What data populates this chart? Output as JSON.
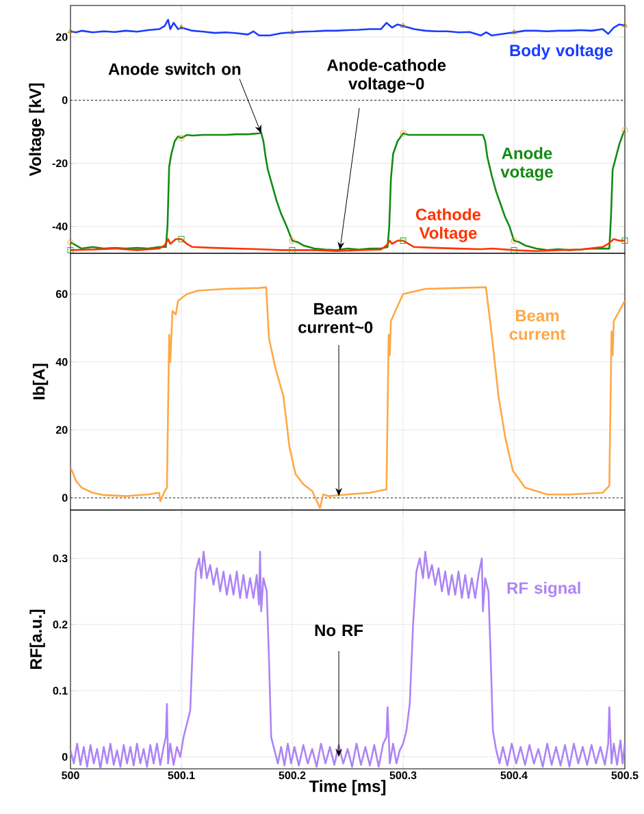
{
  "chart_data": [
    {
      "type": "line",
      "ylabel": "Voltage [kV]",
      "xlim": [
        500,
        500.5
      ],
      "ylim": [
        -48.5,
        30
      ],
      "xticks": [
        500,
        500.1,
        500.2,
        500.3,
        500.4,
        500.5
      ],
      "yticks": [
        -40,
        -20,
        0,
        20
      ],
      "tick_labels": "y",
      "grid": true,
      "ref_lines": [
        {
          "axis": "y",
          "value": 0,
          "line_style": "dashed",
          "color": "#000000"
        }
      ],
      "annotations": [
        {
          "text": "Anode switch on",
          "x": 500.172,
          "y": -10.5
        },
        {
          "text": "Anode-cathode voltage~0",
          "x": 500.243,
          "y": -47.5
        }
      ],
      "series": [
        {
          "name": "Body voltage",
          "color": "#1a3cff",
          "x": [
            500.0,
            500.005,
            500.01,
            500.02,
            500.03,
            500.04,
            500.05,
            500.06,
            500.07,
            500.08,
            500.085,
            500.088,
            500.09,
            500.093,
            500.097,
            500.1,
            500.11,
            500.12,
            500.13,
            500.14,
            500.15,
            500.16,
            500.165,
            500.17,
            500.18,
            500.19,
            500.2,
            500.21,
            500.22,
            500.23,
            500.24,
            500.25,
            500.26,
            500.27,
            500.28,
            500.285,
            500.29,
            500.295,
            500.3,
            500.31,
            500.32,
            500.33,
            500.34,
            500.35,
            500.36,
            500.37,
            500.375,
            500.38,
            500.39,
            500.4,
            500.41,
            500.42,
            500.43,
            500.44,
            500.45,
            500.46,
            500.47,
            500.48,
            500.485,
            500.49,
            500.495,
            500.5
          ],
          "values": [
            21.8,
            21.5,
            22,
            21.5,
            21.8,
            21.6,
            22,
            21.7,
            22.2,
            22.5,
            23.5,
            25.5,
            22.5,
            24.5,
            22.5,
            23,
            22,
            21.7,
            21.3,
            21.5,
            21.2,
            20.8,
            21.8,
            20.5,
            20.5,
            21.2,
            21.5,
            21.7,
            21.8,
            22,
            22,
            22.2,
            22.3,
            22.5,
            22.5,
            24.5,
            23,
            24,
            23.5,
            22.5,
            22,
            21.8,
            21.8,
            21.5,
            21.6,
            20.5,
            21.5,
            20.5,
            21,
            21.5,
            22,
            22,
            21.8,
            22,
            22,
            22.2,
            22,
            22.5,
            21,
            23,
            24,
            23.7
          ]
        },
        {
          "name": "Anode votage",
          "color": "#138a13",
          "x": [
            500.0,
            500.01,
            500.02,
            500.03,
            500.04,
            500.05,
            500.06,
            500.07,
            500.08,
            500.086,
            500.0875,
            500.089,
            500.091,
            500.094,
            500.097,
            500.1,
            500.105,
            500.11,
            500.12,
            500.13,
            500.14,
            500.15,
            500.16,
            500.17,
            500.172,
            500.174,
            500.176,
            500.178,
            500.182,
            500.186,
            500.19,
            500.195,
            500.2,
            500.205,
            500.21,
            500.22,
            500.23,
            500.24,
            500.25,
            500.26,
            500.27,
            500.28,
            500.286,
            500.2875,
            500.289,
            500.291,
            500.295,
            500.3,
            500.305,
            500.31,
            500.32,
            500.33,
            500.34,
            500.35,
            500.36,
            500.372,
            500.374,
            500.376,
            500.38,
            500.384,
            500.388,
            500.392,
            500.396,
            500.4,
            500.405,
            500.41,
            500.42,
            500.43,
            500.44,
            500.45,
            500.46,
            500.47,
            500.48,
            500.486,
            500.4875,
            500.489,
            500.492,
            500.495,
            500.498,
            500.5
          ],
          "values": [
            -45,
            -47,
            -46.5,
            -47,
            -46.8,
            -47,
            -46.8,
            -47,
            -46.5,
            -46.5,
            -40,
            -21,
            -17,
            -13,
            -11.5,
            -12,
            -11,
            -11.2,
            -11,
            -11,
            -11,
            -10.8,
            -10.8,
            -10.5,
            -10.3,
            -13,
            -18,
            -22,
            -27,
            -32,
            -36,
            -40,
            -44.5,
            -45,
            -46,
            -47,
            -47.3,
            -47.5,
            -47,
            -47.3,
            -47,
            -47,
            -46.5,
            -40,
            -25,
            -17,
            -13,
            -10.5,
            -11,
            -11,
            -11,
            -11,
            -11,
            -11,
            -11,
            -11,
            -13,
            -18,
            -24,
            -29,
            -33,
            -37,
            -40,
            -44.5,
            -45,
            -46,
            -47,
            -47.5,
            -47.2,
            -47.5,
            -47.3,
            -47,
            -47,
            -47,
            -37,
            -22,
            -18,
            -14,
            -11,
            -9.5
          ]
        },
        {
          "name": "Cathode Voltage",
          "color": "#ff3300",
          "x": [
            500.0,
            500.02,
            500.04,
            500.06,
            500.08,
            500.085,
            500.088,
            500.09,
            500.095,
            500.1,
            500.105,
            500.11,
            500.13,
            500.15,
            500.17,
            500.19,
            500.2,
            500.22,
            500.24,
            500.26,
            500.28,
            500.285,
            500.288,
            500.29,
            500.295,
            500.3,
            500.305,
            500.31,
            500.33,
            500.35,
            500.37,
            500.38,
            500.4,
            500.42,
            500.44,
            500.46,
            500.48,
            500.485,
            500.49,
            500.495,
            500.5
          ],
          "values": [
            -47.5,
            -47.3,
            -47,
            -47.5,
            -47,
            -46,
            -44,
            -45.5,
            -44,
            -44,
            -45.5,
            -46.5,
            -46.8,
            -47,
            -47.2,
            -47.5,
            -47.5,
            -47.5,
            -47.8,
            -47.5,
            -47.3,
            -46,
            -44.5,
            -45.5,
            -44.5,
            -44.5,
            -45.5,
            -46.5,
            -46.8,
            -47,
            -47.2,
            -47,
            -47.5,
            -47.8,
            -47.5,
            -47.3,
            -46.5,
            -45.5,
            -44,
            -44.5,
            -44.5
          ]
        },
        {
          "type": "scatter",
          "marker": "triangle",
          "color": "#b8860b",
          "x": [
            500.0,
            500.1,
            500.2,
            500.3,
            500.4,
            500.5
          ],
          "values": [
            21.8,
            23,
            21.5,
            23.5,
            21.5,
            23.7
          ]
        },
        {
          "type": "scatter",
          "marker": "circle",
          "color": "#f5a040",
          "x": [
            500.0,
            500.1,
            500.2,
            500.3,
            500.4,
            500.5
          ],
          "values": [
            -45,
            -12,
            -44.5,
            -10.5,
            -44.5,
            -9.5
          ]
        },
        {
          "type": "scatter",
          "marker": "square",
          "color": "#22aa22",
          "x": [
            500.0,
            500.1,
            500.2,
            500.3,
            500.4,
            500.5
          ],
          "values": [
            -47.5,
            -44,
            -47.5,
            -44.5,
            -47.5,
            -44.5
          ]
        }
      ]
    },
    {
      "type": "line",
      "ylabel": "Ib[A]",
      "xlim": [
        500,
        500.5
      ],
      "ylim": [
        -3.6,
        72
      ],
      "xticks": [
        500,
        500.1,
        500.2,
        500.3,
        500.4,
        500.5
      ],
      "yticks": [
        0,
        20,
        40,
        60
      ],
      "tick_labels": "y",
      "grid": true,
      "ref_lines": [
        {
          "axis": "y",
          "value": 0,
          "line_style": "dashed",
          "color": "#000000"
        }
      ],
      "annotations": [
        {
          "text": "Beam current~0",
          "x": 500.242,
          "y": 0.5
        }
      ],
      "series": [
        {
          "name": "Beam current",
          "color": "#ffa845",
          "x": [
            500.0,
            500.005,
            500.01,
            500.02,
            500.03,
            500.05,
            500.07,
            500.08,
            500.081,
            500.085,
            500.087,
            500.089,
            500.09,
            500.092,
            500.095,
            500.097,
            500.105,
            500.115,
            500.14,
            500.17,
            500.1765,
            500.179,
            500.185,
            500.192,
            500.1975,
            500.203,
            500.21,
            500.218,
            500.225,
            500.228,
            500.233,
            500.25,
            500.27,
            500.285,
            500.287,
            500.288,
            500.289,
            500.293,
            500.3,
            500.32,
            500.35,
            500.3747,
            500.38,
            500.386,
            500.392,
            500.399,
            500.41,
            500.43,
            500.45,
            500.48,
            500.486,
            500.488,
            500.489,
            500.49,
            500.495,
            500.5
          ],
          "values": [
            9,
            5,
            3,
            1.5,
            0.8,
            0.5,
            1,
            1.5,
            -1,
            2,
            3,
            48,
            40,
            55,
            54,
            58,
            60,
            61,
            61.5,
            61.8,
            62,
            47,
            38,
            30,
            15,
            7,
            4,
            2,
            -3,
            1,
            0.5,
            1,
            1.5,
            2.5,
            48,
            42,
            52,
            55,
            60,
            61.5,
            61.8,
            62,
            48,
            30,
            18,
            8,
            3,
            1,
            1,
            1.5,
            3.5,
            49,
            42,
            52,
            55,
            58
          ]
        }
      ]
    },
    {
      "type": "line",
      "ylabel": "RF[a.u.]",
      "xlabel": "Time [ms]",
      "xlim": [
        500,
        500.5
      ],
      "ylim": [
        -0.018,
        0.373
      ],
      "xticks": [
        500,
        500.1,
        500.2,
        500.3,
        500.4,
        500.5
      ],
      "yticks": [
        0,
        0.1,
        0.2,
        0.3
      ],
      "grid": true,
      "annotations": [
        {
          "text": "No RF",
          "x": 500.242,
          "y": 0
        }
      ],
      "series": [
        {
          "name": "RF signal",
          "color": "#ad84f5",
          "x": [
            500.0,
            500.003,
            500.006,
            500.009,
            500.012,
            500.015,
            500.018,
            500.021,
            500.024,
            500.027,
            500.03,
            500.033,
            500.036,
            500.039,
            500.042,
            500.045,
            500.048,
            500.051,
            500.054,
            500.057,
            500.06,
            500.063,
            500.066,
            500.069,
            500.072,
            500.075,
            500.078,
            500.081,
            500.084,
            500.086,
            500.087,
            500.088,
            500.09,
            500.093,
            500.096,
            500.099,
            500.102,
            500.105,
            500.108,
            500.111,
            500.113,
            500.116,
            500.118,
            500.12,
            500.123,
            500.126,
            500.129,
            500.132,
            500.135,
            500.138,
            500.141,
            500.144,
            500.147,
            500.15,
            500.153,
            500.156,
            500.159,
            500.162,
            500.165,
            500.168,
            500.17,
            500.171,
            500.172,
            500.174,
            500.177,
            500.179,
            500.181,
            500.184,
            500.187,
            500.19,
            500.193,
            500.196,
            500.199,
            500.202,
            500.206,
            500.21,
            500.214,
            500.218,
            500.222,
            500.226,
            500.23,
            500.234,
            500.238,
            500.242,
            500.246,
            500.25,
            500.254,
            500.258,
            500.262,
            500.266,
            500.27,
            500.274,
            500.278,
            500.282,
            500.285,
            500.286,
            500.288,
            500.291,
            500.294,
            500.297,
            500.3,
            500.303,
            500.306,
            500.309,
            500.312,
            500.315,
            500.318,
            500.32,
            500.323,
            500.326,
            500.329,
            500.332,
            500.335,
            500.338,
            500.341,
            500.344,
            500.347,
            500.35,
            500.353,
            500.356,
            500.359,
            500.362,
            500.365,
            500.368,
            500.371,
            500.372,
            500.374,
            500.377,
            500.379,
            500.381,
            500.384,
            500.387,
            500.39,
            500.394,
            500.398,
            500.402,
            500.406,
            500.41,
            500.414,
            500.418,
            500.422,
            500.426,
            500.43,
            500.434,
            500.438,
            500.442,
            500.446,
            500.45,
            500.454,
            500.458,
            500.462,
            500.466,
            500.47,
            500.474,
            500.478,
            500.482,
            500.485,
            500.486,
            500.488,
            500.49,
            500.493,
            500.496,
            500.498,
            500.5
          ],
          "values": [
            0.01,
            -0.01,
            0.02,
            -0.012,
            0.015,
            -0.015,
            0.018,
            -0.01,
            0.012,
            -0.018,
            0.015,
            -0.01,
            0.02,
            -0.012,
            0.01,
            -0.015,
            0.018,
            -0.01,
            0.015,
            -0.013,
            0.02,
            -0.01,
            0.012,
            -0.015,
            0.018,
            -0.01,
            0.02,
            -0.012,
            0.015,
            0.03,
            0.08,
            -0.01,
            0.02,
            -0.012,
            0.015,
            0.0,
            0.03,
            0.05,
            0.07,
            0.2,
            0.28,
            0.3,
            0.27,
            0.31,
            0.27,
            0.29,
            0.26,
            0.285,
            0.25,
            0.28,
            0.245,
            0.275,
            0.245,
            0.28,
            0.24,
            0.275,
            0.24,
            0.27,
            0.24,
            0.275,
            0.23,
            0.31,
            0.22,
            0.27,
            0.25,
            0.15,
            0.03,
            0.01,
            -0.01,
            0.015,
            -0.013,
            0.02,
            -0.01,
            0.015,
            -0.013,
            0.018,
            -0.01,
            0.012,
            -0.015,
            0.02,
            -0.01,
            0.015,
            -0.012,
            0.018,
            -0.01,
            0.012,
            -0.015,
            0.02,
            -0.012,
            0.015,
            -0.013,
            0.018,
            -0.015,
            0.02,
            0.03,
            0.075,
            -0.01,
            0.02,
            -0.01,
            0.01,
            0.02,
            0.04,
            0.08,
            0.2,
            0.28,
            0.3,
            0.27,
            0.31,
            0.27,
            0.29,
            0.26,
            0.285,
            0.25,
            0.28,
            0.245,
            0.275,
            0.245,
            0.28,
            0.24,
            0.275,
            0.24,
            0.27,
            0.24,
            0.275,
            0.3,
            0.22,
            0.27,
            0.25,
            0.15,
            0.04,
            0.01,
            -0.01,
            0.015,
            -0.013,
            0.02,
            -0.01,
            0.015,
            -0.012,
            0.018,
            -0.01,
            0.012,
            -0.015,
            0.02,
            -0.012,
            0.015,
            -0.013,
            0.018,
            -0.015,
            0.02,
            -0.01,
            0.015,
            -0.012,
            0.018,
            -0.01,
            0.015,
            -0.012,
            0.02,
            0.075,
            -0.01,
            0.02,
            -0.012,
            0.025,
            -0.01,
            0.02
          ]
        }
      ]
    }
  ]
}
